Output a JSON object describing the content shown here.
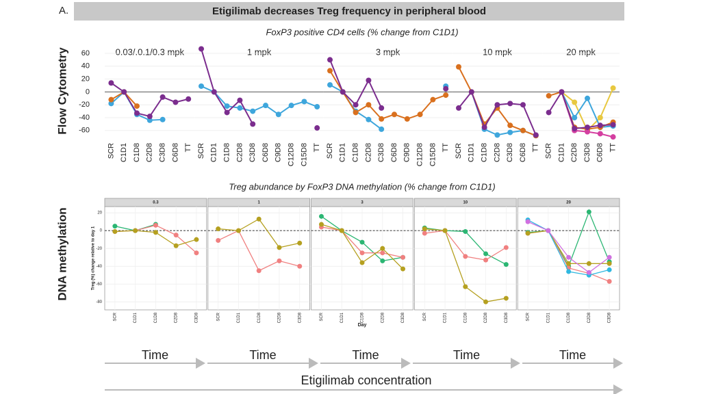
{
  "slide": {
    "label": "A.",
    "title": "Etigilimab decreases Treg frequency in peripheral blood",
    "time_labels": [
      "Time",
      "Time",
      "Time",
      "Time",
      "Time"
    ],
    "footer": "Etigilimab concentration"
  },
  "chart_data": [
    {
      "type": "line",
      "title": "FoxP3 positive CD4 cells (% change from C1D1)",
      "section": "Flow Cytometry",
      "ylim": [
        -73,
        76
      ],
      "yticks": [
        -60,
        -40,
        -20,
        0,
        20,
        40,
        60
      ],
      "panels": [
        {
          "title": "0.03/.0.1/0.3 mpk",
          "categories": [
            "SCR",
            "C1D1",
            "C1D8",
            "C2D8",
            "C3D8",
            "C6D8",
            "TT"
          ],
          "series": [
            {
              "color": "#3ea6dc",
              "values": [
                -18,
                0,
                -35,
                -44,
                -43,
                null,
                null
              ]
            },
            {
              "color": "#d9701e",
              "values": [
                -12,
                0,
                -22,
                null,
                null,
                null,
                null
              ]
            },
            {
              "color": "#7b2d8e",
              "values": [
                14,
                0,
                -33,
                -38,
                -8,
                -16,
                -11
              ]
            }
          ]
        },
        {
          "title": "1 mpk",
          "categories": [
            "SCR",
            "C1D1",
            "C1D8",
            "C2D8",
            "C3D8",
            "C6D8",
            "C9D8",
            "C12D8",
            "C15D8",
            "TT"
          ],
          "series": [
            {
              "color": "#3ea6dc",
              "values": [
                9,
                0,
                -22,
                -25,
                -30,
                -21,
                -35,
                -21,
                -15,
                -23
              ]
            },
            {
              "color": "#7b2d8e",
              "values": [
                67,
                0,
                -32,
                -13,
                -50,
                null,
                null,
                null,
                null,
                -56
              ]
            }
          ]
        },
        {
          "title": "3 mpk",
          "categories": [
            "SCR",
            "C1D1",
            "C1D8",
            "C2D8",
            "C3D8",
            "C6D8",
            "C9D8",
            "C12D8",
            "C15D8",
            "TT"
          ],
          "series": [
            {
              "color": "#3ea6dc",
              "values": [
                11,
                0,
                -30,
                -43,
                -58,
                null,
                null,
                null,
                null,
                9
              ]
            },
            {
              "color": "#d9701e",
              "values": [
                33,
                0,
                -32,
                -20,
                -42,
                -35,
                -42,
                -35,
                -12,
                -5
              ]
            },
            {
              "color": "#7b2d8e",
              "values": [
                50,
                0,
                -20,
                18,
                -25,
                null,
                null,
                null,
                null,
                5
              ]
            }
          ]
        },
        {
          "title": "10 mpk",
          "categories": [
            "SCR",
            "C1D1",
            "C1D8",
            "C2D8",
            "C3D8",
            "C6D8",
            "TT"
          ],
          "series": [
            {
              "color": "#3ea6dc",
              "values": [
                null,
                0,
                -58,
                -67,
                -63,
                -60,
                -68
              ]
            },
            {
              "color": "#d9701e",
              "values": [
                39,
                0,
                -50,
                -25,
                -52,
                -60,
                -68
              ]
            },
            {
              "color": "#7b2d8e",
              "values": [
                -25,
                0,
                -55,
                -20,
                -18,
                -20,
                -67
              ]
            }
          ]
        },
        {
          "title": "20 mpk",
          "categories": [
            "SCR",
            "C1D1",
            "C2D8",
            "C3D8",
            "C6D8",
            "TT"
          ],
          "series": [
            {
              "color": "#e8c840",
              "values": [
                null,
                0,
                -16,
                -60,
                -40,
                6
              ]
            },
            {
              "color": "#3ea6dc",
              "values": [
                null,
                0,
                -40,
                -10,
                -55,
                -53
              ]
            },
            {
              "color": "#d9701e",
              "values": [
                -6,
                0,
                -55,
                -58,
                -55,
                -47
              ]
            },
            {
              "color": "#d43fa0",
              "values": [
                null,
                0,
                -60,
                -62,
                -65,
                -70
              ]
            },
            {
              "color": "#7b2d8e",
              "values": [
                -32,
                0,
                -57,
                -55,
                -52,
                -51
              ]
            }
          ]
        }
      ]
    },
    {
      "type": "line",
      "title": "Treg abundance by FoxP3 DNA methylation (% change from C1D1)",
      "section": "DNA methylation",
      "ylabel": "Treg (%) change relative to day 1",
      "xlabel": "Day",
      "ylim": [
        -89,
        27
      ],
      "yticks": [
        -80,
        -60,
        -40,
        -20,
        0,
        20
      ],
      "panels": [
        {
          "title": "0.3",
          "categories": [
            "SCR",
            "C1D1",
            "C1D8",
            "C2D8",
            "C3D8"
          ],
          "series": [
            {
              "color": "#2bb673",
              "values": [
                5,
                0,
                7,
                null,
                null
              ]
            },
            {
              "color": "#f08080",
              "values": [
                -1,
                0,
                6,
                -5,
                -25
              ]
            },
            {
              "color": "#b5a020",
              "values": [
                -1,
                0,
                -2,
                -17,
                -10
              ]
            }
          ]
        },
        {
          "title": "1",
          "categories": [
            "SCR",
            "C1D1",
            "C1D8",
            "C2D8",
            "C3D8"
          ],
          "series": [
            {
              "color": "#f08080",
              "values": [
                -11,
                0,
                -45,
                -34,
                -40
              ]
            },
            {
              "color": "#b5a020",
              "values": [
                2,
                0,
                13,
                -19,
                -14
              ]
            }
          ]
        },
        {
          "title": "3",
          "categories": [
            "SCR",
            "C1D1",
            "C1D8",
            "C2D8",
            "C3D8"
          ],
          "series": [
            {
              "color": "#2bb673",
              "values": [
                16,
                0,
                -13,
                -34,
                -30
              ]
            },
            {
              "color": "#f08080",
              "values": [
                4,
                0,
                -25,
                -25,
                -30
              ]
            },
            {
              "color": "#b5a020",
              "values": [
                7,
                0,
                -36,
                -20,
                -43
              ]
            }
          ]
        },
        {
          "title": "10",
          "categories": [
            "SCR",
            "C1D1",
            "C1D8",
            "C2D8",
            "C3D8"
          ],
          "series": [
            {
              "color": "#2bb673",
              "values": [
                3,
                0,
                -1,
                -26,
                -38
              ]
            },
            {
              "color": "#f08080",
              "values": [
                -3,
                0,
                -29,
                -33,
                -19
              ]
            },
            {
              "color": "#b5a020",
              "values": [
                2,
                0,
                -63,
                -80,
                -76
              ]
            }
          ]
        },
        {
          "title": "20",
          "categories": [
            "SCR",
            "C1D1",
            "C1D8",
            "C2D8",
            "C3D8"
          ],
          "series": [
            {
              "color": "#2bb673",
              "values": [
                -2,
                0,
                -40,
                21,
                -35
              ]
            },
            {
              "color": "#f08080",
              "values": [
                -3,
                0,
                -42,
                -48,
                -57
              ]
            },
            {
              "color": "#b5a020",
              "values": [
                -3,
                0,
                -37,
                -37,
                -37
              ]
            },
            {
              "color": "#30b8e0",
              "values": [
                12,
                0,
                -46,
                -50,
                -44
              ]
            },
            {
              "color": "#d070e0",
              "values": [
                10,
                0,
                -30,
                -47,
                -30
              ]
            }
          ]
        }
      ]
    }
  ]
}
